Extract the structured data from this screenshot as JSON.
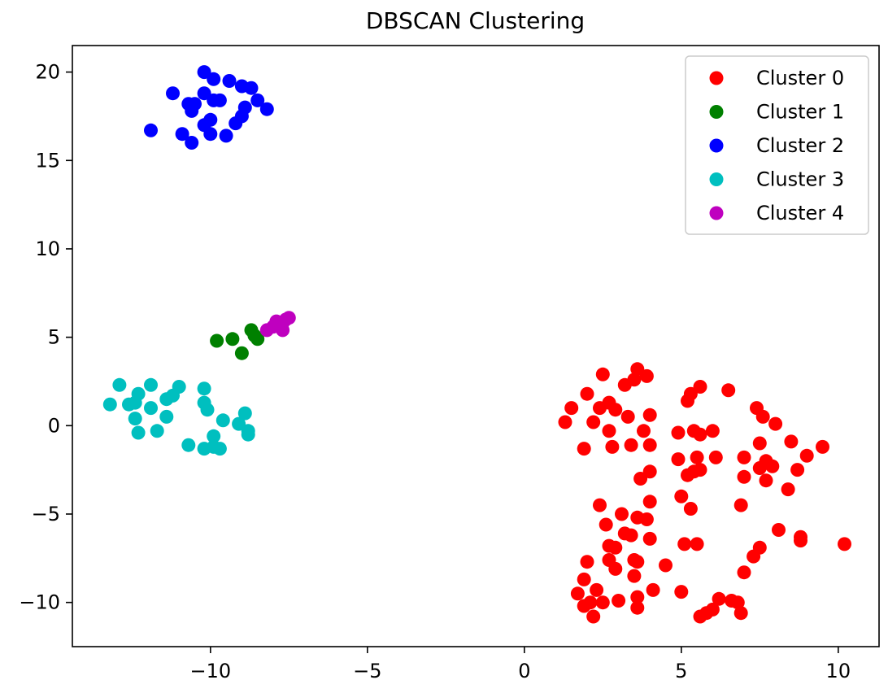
{
  "chart_data": {
    "type": "scatter",
    "title": "DBSCAN Clustering",
    "xlabel": "",
    "ylabel": "",
    "xlim": [
      -14.4,
      11.3
    ],
    "ylim": [
      -12.5,
      21.5
    ],
    "x_ticks": [
      {
        "value": -10,
        "label": "−10"
      },
      {
        "value": -5,
        "label": "−5"
      },
      {
        "value": 0,
        "label": "0"
      },
      {
        "value": 5,
        "label": "5"
      },
      {
        "value": 10,
        "label": "10"
      }
    ],
    "y_ticks": [
      {
        "value": -10,
        "label": "−10"
      },
      {
        "value": -5,
        "label": "−5"
      },
      {
        "value": 0,
        "label": "0"
      },
      {
        "value": 5,
        "label": "5"
      },
      {
        "value": 10,
        "label": "10"
      },
      {
        "value": 15,
        "label": "15"
      },
      {
        "value": 20,
        "label": "20"
      }
    ],
    "grid": false,
    "legend_position": "top-right",
    "series": [
      {
        "name": "Cluster 0",
        "color": "#ff0000",
        "points": [
          [
            1.3,
            0.2
          ],
          [
            1.5,
            1.0
          ],
          [
            2.0,
            1.8
          ],
          [
            2.4,
            1.0
          ],
          [
            2.5,
            2.9
          ],
          [
            2.7,
            1.3
          ],
          [
            2.9,
            0.9
          ],
          [
            3.2,
            2.3
          ],
          [
            3.5,
            2.6
          ],
          [
            3.6,
            3.2
          ],
          [
            3.9,
            2.8
          ],
          [
            4.0,
            0.6
          ],
          [
            2.2,
            0.2
          ],
          [
            2.7,
            -0.3
          ],
          [
            3.3,
            0.5
          ],
          [
            3.8,
            -0.3
          ],
          [
            1.9,
            -1.3
          ],
          [
            2.8,
            -1.2
          ],
          [
            3.4,
            -1.1
          ],
          [
            4.0,
            -1.1
          ],
          [
            4.9,
            -0.4
          ],
          [
            5.2,
            1.4
          ],
          [
            5.3,
            1.8
          ],
          [
            5.6,
            2.2
          ],
          [
            5.4,
            -0.3
          ],
          [
            5.6,
            -0.5
          ],
          [
            6.0,
            -0.3
          ],
          [
            6.5,
            2.0
          ],
          [
            7.4,
            1.0
          ],
          [
            7.6,
            0.5
          ],
          [
            8.0,
            0.1
          ],
          [
            8.5,
            -0.9
          ],
          [
            9.0,
            -1.7
          ],
          [
            9.5,
            -1.2
          ],
          [
            4.9,
            -1.9
          ],
          [
            5.2,
            -2.8
          ],
          [
            5.5,
            -1.8
          ],
          [
            5.4,
            -2.6
          ],
          [
            5.6,
            -2.5
          ],
          [
            6.1,
            -1.8
          ],
          [
            7.0,
            -1.8
          ],
          [
            7.5,
            -1.0
          ],
          [
            7.5,
            -2.4
          ],
          [
            7.7,
            -2.0
          ],
          [
            7.9,
            -2.3
          ],
          [
            7.7,
            -3.1
          ],
          [
            8.7,
            -2.5
          ],
          [
            7.0,
            -2.9
          ],
          [
            3.7,
            -3.0
          ],
          [
            4.0,
            -2.6
          ],
          [
            4.0,
            -4.3
          ],
          [
            3.6,
            -5.2
          ],
          [
            3.9,
            -5.3
          ],
          [
            2.4,
            -4.5
          ],
          [
            2.6,
            -5.6
          ],
          [
            3.1,
            -5.0
          ],
          [
            3.2,
            -6.1
          ],
          [
            3.4,
            -6.2
          ],
          [
            4.0,
            -6.4
          ],
          [
            5.0,
            -4.0
          ],
          [
            5.3,
            -4.7
          ],
          [
            5.1,
            -6.7
          ],
          [
            5.5,
            -6.7
          ],
          [
            6.9,
            -4.5
          ],
          [
            8.1,
            -5.9
          ],
          [
            8.4,
            -3.6
          ],
          [
            8.8,
            -6.3
          ],
          [
            8.8,
            -6.5
          ],
          [
            10.2,
            -6.7
          ],
          [
            2.7,
            -6.8
          ],
          [
            2.9,
            -6.9
          ],
          [
            2.7,
            -7.6
          ],
          [
            2.9,
            -8.1
          ],
          [
            3.5,
            -7.6
          ],
          [
            3.6,
            -7.7
          ],
          [
            3.5,
            -8.5
          ],
          [
            2.0,
            -7.7
          ],
          [
            1.9,
            -8.7
          ],
          [
            4.5,
            -7.9
          ],
          [
            4.1,
            -9.3
          ],
          [
            5.0,
            -9.4
          ],
          [
            3.0,
            -9.9
          ],
          [
            2.5,
            -10.0
          ],
          [
            2.3,
            -9.3
          ],
          [
            2.1,
            -10.0
          ],
          [
            1.7,
            -9.5
          ],
          [
            1.9,
            -10.2
          ],
          [
            2.2,
            -10.8
          ],
          [
            3.6,
            -9.7
          ],
          [
            3.6,
            -10.3
          ],
          [
            5.6,
            -10.8
          ],
          [
            5.8,
            -10.6
          ],
          [
            6.0,
            -10.4
          ],
          [
            6.2,
            -9.8
          ],
          [
            6.6,
            -9.9
          ],
          [
            6.8,
            -10.0
          ],
          [
            6.9,
            -10.6
          ],
          [
            7.0,
            -8.3
          ],
          [
            7.3,
            -7.4
          ],
          [
            7.5,
            -6.9
          ]
        ]
      },
      {
        "name": "Cluster 1",
        "color": "#008000",
        "points": [
          [
            -9.8,
            4.8
          ],
          [
            -9.3,
            4.9
          ],
          [
            -9.0,
            4.1
          ],
          [
            -8.7,
            5.4
          ],
          [
            -8.6,
            5.1
          ],
          [
            -8.5,
            4.9
          ]
        ]
      },
      {
        "name": "Cluster 2",
        "color": "#0000ff",
        "points": [
          [
            -10.2,
            20.0
          ],
          [
            -9.4,
            19.5
          ],
          [
            -9.0,
            19.2
          ],
          [
            -8.7,
            19.1
          ],
          [
            -9.9,
            19.6
          ],
          [
            -11.2,
            18.8
          ],
          [
            -10.2,
            18.8
          ],
          [
            -10.7,
            18.2
          ],
          [
            -10.5,
            18.2
          ],
          [
            -9.7,
            18.4
          ],
          [
            -9.9,
            18.4
          ],
          [
            -10.6,
            17.8
          ],
          [
            -8.9,
            18.0
          ],
          [
            -8.5,
            18.4
          ],
          [
            -8.2,
            17.9
          ],
          [
            -10.0,
            17.3
          ],
          [
            -9.2,
            17.1
          ],
          [
            -9.0,
            17.5
          ],
          [
            -10.2,
            17.0
          ],
          [
            -10.9,
            16.5
          ],
          [
            -10.0,
            16.5
          ],
          [
            -9.5,
            16.4
          ],
          [
            -10.6,
            16.0
          ],
          [
            -11.9,
            16.7
          ]
        ]
      },
      {
        "name": "Cluster 3",
        "color": "#00bfbf",
        "points": [
          [
            -12.9,
            2.3
          ],
          [
            -12.3,
            1.8
          ],
          [
            -11.9,
            2.3
          ],
          [
            -11.0,
            2.2
          ],
          [
            -10.2,
            2.1
          ],
          [
            -13.2,
            1.2
          ],
          [
            -12.6,
            1.2
          ],
          [
            -12.4,
            1.3
          ],
          [
            -11.9,
            1.0
          ],
          [
            -11.4,
            1.5
          ],
          [
            -11.2,
            1.7
          ],
          [
            -10.2,
            1.3
          ],
          [
            -10.1,
            0.9
          ],
          [
            -12.4,
            0.4
          ],
          [
            -11.4,
            0.5
          ],
          [
            -12.3,
            -0.4
          ],
          [
            -11.7,
            -0.3
          ],
          [
            -9.6,
            0.3
          ],
          [
            -9.1,
            0.1
          ],
          [
            -8.9,
            0.7
          ],
          [
            -8.8,
            -0.3
          ],
          [
            -8.8,
            -0.5
          ],
          [
            -9.9,
            -0.6
          ],
          [
            -10.7,
            -1.1
          ],
          [
            -10.2,
            -1.3
          ],
          [
            -9.9,
            -1.2
          ],
          [
            -9.7,
            -1.3
          ]
        ]
      },
      {
        "name": "Cluster 4",
        "color": "#bf00bf",
        "points": [
          [
            -8.2,
            5.4
          ],
          [
            -8.0,
            5.6
          ],
          [
            -7.9,
            5.9
          ],
          [
            -7.7,
            5.4
          ],
          [
            -7.7,
            5.8
          ],
          [
            -7.6,
            6.0
          ],
          [
            -7.5,
            6.1
          ]
        ]
      }
    ]
  }
}
